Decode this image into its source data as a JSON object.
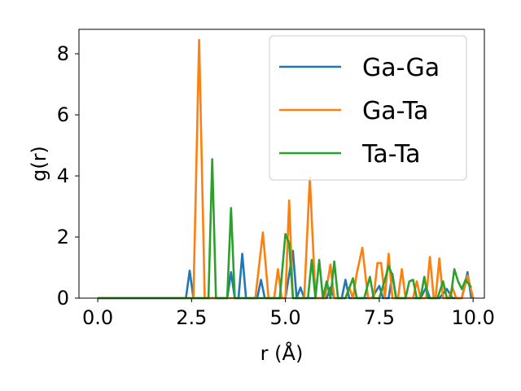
{
  "chart_data": {
    "type": "line",
    "xlabel": "r (Å)",
    "ylabel": "g(r)",
    "xlim": [
      -0.5,
      10.3
    ],
    "ylim": [
      0,
      8.8
    ],
    "xticks": [
      0.0,
      2.5,
      5.0,
      7.5,
      10.0
    ],
    "xtick_labels": [
      "0.0",
      "2.5",
      "5.0",
      "7.5",
      "10.0"
    ],
    "yticks": [
      0,
      2,
      4,
      6,
      8
    ],
    "ytick_labels": [
      "0",
      "2",
      "4",
      "6",
      "8"
    ],
    "grid": false,
    "legend_position": "top-right",
    "series": [
      {
        "name": "Ga-Ga",
        "color": "#1f77b4",
        "points": [
          [
            0.0,
            0
          ],
          [
            2.2,
            0
          ],
          [
            2.35,
            0.0
          ],
          [
            2.45,
            0.9
          ],
          [
            2.55,
            0.0
          ],
          [
            3.3,
            0
          ],
          [
            3.45,
            0.0
          ],
          [
            3.55,
            0.85
          ],
          [
            3.65,
            0.0
          ],
          [
            3.75,
            0.0
          ],
          [
            3.85,
            1.45
          ],
          [
            3.95,
            0.0
          ],
          [
            4.25,
            0.0
          ],
          [
            4.35,
            0.6
          ],
          [
            4.45,
            0.0
          ],
          [
            5.0,
            0.0
          ],
          [
            5.2,
            1.55
          ],
          [
            5.3,
            0.0
          ],
          [
            5.4,
            0.35
          ],
          [
            5.5,
            0.0
          ],
          [
            6.1,
            0.0
          ],
          [
            6.2,
            0.35
          ],
          [
            6.3,
            0.0
          ],
          [
            6.5,
            0.0
          ],
          [
            6.6,
            0.6
          ],
          [
            6.7,
            0.0
          ],
          [
            7.3,
            0.0
          ],
          [
            7.5,
            0.4
          ],
          [
            7.6,
            0.0
          ],
          [
            7.75,
            0.0
          ],
          [
            7.85,
            0.8
          ],
          [
            7.95,
            0.0
          ],
          [
            8.6,
            0.0
          ],
          [
            8.75,
            0.35
          ],
          [
            8.85,
            0.0
          ],
          [
            9.1,
            0.0
          ],
          [
            9.3,
            0.3
          ],
          [
            9.45,
            0.0
          ],
          [
            9.7,
            0.0
          ],
          [
            9.85,
            0.85
          ],
          [
            9.95,
            0.0
          ]
        ]
      },
      {
        "name": "Ga-Ta",
        "color": "#ff7f0e",
        "points": [
          [
            0.0,
            0
          ],
          [
            2.4,
            0
          ],
          [
            2.55,
            0.0
          ],
          [
            2.7,
            8.45
          ],
          [
            2.85,
            0.0
          ],
          [
            4.2,
            0.0
          ],
          [
            4.4,
            2.15
          ],
          [
            4.55,
            0.0
          ],
          [
            4.7,
            0.0
          ],
          [
            4.8,
            0.95
          ],
          [
            4.9,
            0.0
          ],
          [
            5.0,
            0.0
          ],
          [
            5.1,
            3.2
          ],
          [
            5.2,
            0.0
          ],
          [
            5.5,
            0.0
          ],
          [
            5.65,
            3.95
          ],
          [
            5.8,
            0.0
          ],
          [
            6.05,
            0.0
          ],
          [
            6.2,
            1.1
          ],
          [
            6.3,
            0.0
          ],
          [
            6.6,
            0.0
          ],
          [
            6.7,
            0.35
          ],
          [
            6.8,
            0.0
          ],
          [
            6.9,
            0.8
          ],
          [
            7.05,
            1.65
          ],
          [
            7.2,
            0.0
          ],
          [
            7.35,
            0.0
          ],
          [
            7.45,
            1.15
          ],
          [
            7.55,
            1.15
          ],
          [
            7.65,
            0.0
          ],
          [
            7.75,
            1.45
          ],
          [
            7.85,
            0.0
          ],
          [
            8.0,
            0.0
          ],
          [
            8.1,
            0.95
          ],
          [
            8.2,
            0.0
          ],
          [
            8.4,
            0.0
          ],
          [
            8.5,
            0.55
          ],
          [
            8.6,
            0.0
          ],
          [
            8.75,
            0.0
          ],
          [
            8.85,
            1.35
          ],
          [
            8.95,
            0.0
          ],
          [
            9.0,
            0.0
          ],
          [
            9.1,
            1.3
          ],
          [
            9.2,
            0.0
          ],
          [
            9.35,
            0.0
          ],
          [
            9.45,
            0.35
          ],
          [
            9.55,
            0.0
          ],
          [
            9.7,
            0.0
          ],
          [
            9.85,
            0.75
          ],
          [
            10.0,
            0.0
          ]
        ]
      },
      {
        "name": "Ta-Ta",
        "color": "#2ca02c",
        "points": [
          [
            0.0,
            0
          ],
          [
            2.8,
            0
          ],
          [
            2.95,
            0.0
          ],
          [
            3.05,
            4.55
          ],
          [
            3.15,
            0.0
          ],
          [
            3.45,
            0.0
          ],
          [
            3.55,
            2.95
          ],
          [
            3.65,
            0.0
          ],
          [
            4.85,
            0.0
          ],
          [
            5.0,
            2.1
          ],
          [
            5.1,
            1.8
          ],
          [
            5.2,
            0.0
          ],
          [
            5.6,
            0.0
          ],
          [
            5.7,
            1.25
          ],
          [
            5.8,
            0.0
          ],
          [
            5.9,
            1.25
          ],
          [
            6.0,
            0.0
          ],
          [
            6.1,
            0.55
          ],
          [
            6.2,
            0.0
          ],
          [
            6.3,
            1.2
          ],
          [
            6.4,
            0.0
          ],
          [
            6.6,
            0.0
          ],
          [
            6.8,
            0.65
          ],
          [
            6.9,
            0.0
          ],
          [
            7.1,
            0.0
          ],
          [
            7.25,
            0.7
          ],
          [
            7.35,
            0.0
          ],
          [
            7.5,
            0.0
          ],
          [
            7.65,
            0.6
          ],
          [
            7.75,
            1.05
          ],
          [
            7.85,
            0.75
          ],
          [
            7.95,
            0.0
          ],
          [
            8.2,
            0.0
          ],
          [
            8.3,
            0.55
          ],
          [
            8.4,
            0.6
          ],
          [
            8.5,
            0.0
          ],
          [
            8.6,
            0.0
          ],
          [
            8.7,
            0.7
          ],
          [
            8.8,
            0.0
          ],
          [
            9.05,
            0.0
          ],
          [
            9.2,
            0.55
          ],
          [
            9.3,
            0.0
          ],
          [
            9.4,
            0.0
          ],
          [
            9.5,
            0.95
          ],
          [
            9.6,
            0.55
          ],
          [
            9.7,
            0.3
          ],
          [
            9.8,
            0.6
          ],
          [
            9.95,
            0.35
          ]
        ]
      }
    ]
  }
}
